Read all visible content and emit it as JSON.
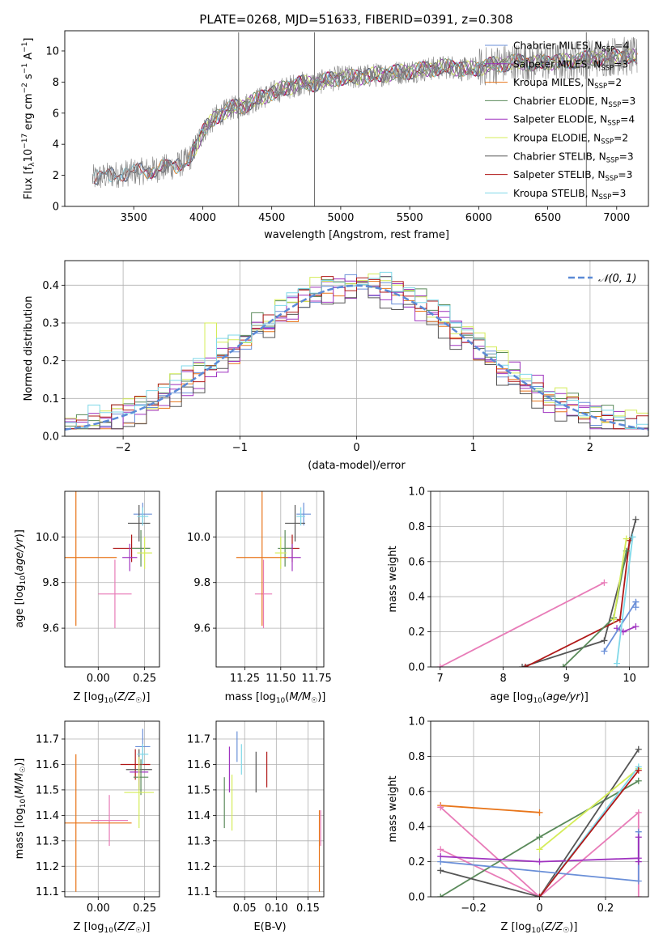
{
  "figure": {
    "title": "PLATE=0268, MJD=51633, FIBERID=0391, z=0.308"
  },
  "colors": {
    "chabrier_miles": "#6a8fd8",
    "salpeter_miles": "#9b2dbb",
    "kroupa_miles": "#e8751a",
    "chabrier_elodie": "#5a8a5a",
    "salpeter_elodie": "#a034c0",
    "kroupa_elodie": "#d4ec58",
    "chabrier_stelib": "#555555",
    "salpeter_stelib": "#b01818",
    "kroupa_stelib": "#7fd8e8",
    "pink": "#e87cb8",
    "normal": "#5b8ad6",
    "data": "#808080"
  },
  "chart_data": [
    {
      "panel": "spectrum",
      "type": "line",
      "xlabel": "wavelength [Angstrom, rest frame]",
      "ylabel": "Flux [f_λ 10^-17 erg cm^-2 s^-1 A^-1]",
      "xlim": [
        3000,
        7230
      ],
      "ylim": [
        0,
        11.3
      ],
      "xticks": [
        3500,
        4000,
        4500,
        5000,
        5500,
        6000,
        6500,
        7000
      ],
      "yticks": [
        0,
        2,
        4,
        6,
        8,
        10
      ],
      "legend_position": "top-right",
      "legend": [
        {
          "label": "Chabrier MILES, N",
          "sub": "SSP",
          "tail": "=4",
          "color": "chabrier_miles"
        },
        {
          "label": "Salpeter MILES, N",
          "sub": "SSP",
          "tail": "=3",
          "color": "salpeter_miles"
        },
        {
          "label": "Kroupa MILES, N",
          "sub": "SSP",
          "tail": "=2",
          "color": "kroupa_miles"
        },
        {
          "label": "Chabrier ELODIE, N",
          "sub": "SSP",
          "tail": "=3",
          "color": "chabrier_elodie"
        },
        {
          "label": "Salpeter ELODIE, N",
          "sub": "SSP",
          "tail": "=4",
          "color": "salpeter_elodie"
        },
        {
          "label": "Kroupa ELODIE, N",
          "sub": "SSP",
          "tail": "=2",
          "color": "kroupa_elodie"
        },
        {
          "label": "Chabrier STELIB, N",
          "sub": "SSP",
          "tail": "=3",
          "color": "chabrier_stelib"
        },
        {
          "label": "Salpeter STELIB, N",
          "sub": "SSP",
          "tail": "=3",
          "color": "salpeter_stelib"
        },
        {
          "label": "Kroupa STELIB, N",
          "sub": "SSP",
          "tail": "=3",
          "color": "kroupa_stelib"
        }
      ],
      "continuum": {
        "x": [
          3200,
          3400,
          3600,
          3800,
          3900,
          4000,
          4100,
          4200,
          4300,
          4400,
          4500,
          4600,
          4700,
          4800,
          4900,
          5000,
          5100,
          5200,
          5300,
          5400,
          5500,
          5600,
          5700,
          5800,
          5900,
          6000,
          6100,
          6200,
          6300,
          6400,
          6500,
          6600,
          6700,
          6800,
          6900,
          7000,
          7100
        ],
        "y": [
          1.8,
          2.1,
          2.3,
          2.6,
          3.0,
          4.8,
          5.8,
          6.3,
          6.5,
          6.9,
          7.3,
          7.6,
          7.9,
          7.9,
          8.1,
          8.3,
          8.3,
          8.4,
          8.5,
          8.6,
          8.7,
          8.8,
          8.9,
          9.0,
          8.8,
          8.9,
          9.1,
          9.2,
          9.3,
          9.2,
          9.3,
          9.3,
          9.4,
          9.5,
          9.6,
          9.7,
          9.6
        ]
      },
      "spikes": [
        4260,
        4810,
        6780
      ]
    },
    {
      "panel": "residuals",
      "type": "area",
      "xlabel": "(data-model)/error",
      "ylabel": "Normed distribution",
      "xlim": [
        -2.5,
        2.5
      ],
      "ylim": [
        0,
        0.465
      ],
      "xticks": [
        -2,
        -1,
        0,
        1,
        2
      ],
      "yticks": [
        0.0,
        0.1,
        0.2,
        0.3,
        0.4
      ],
      "legend_position": "top-right",
      "legend": [
        {
          "label": "𝒩(0, 1)",
          "color": "normal"
        }
      ],
      "bin_width": 0.1,
      "series_offsets": [
        0.0,
        0.012,
        -0.014,
        0.02,
        -0.01,
        0.016,
        -0.018,
        0.008,
        0.024
      ]
    },
    {
      "panel": "age_vs_Z",
      "type": "scatter",
      "xlabel": "Z [log₁₀(Z/Z☉)]",
      "ylabel": "age  [log₁₀(age/yr)]",
      "xlim": [
        -0.18,
        0.33
      ],
      "ylim": [
        9.43,
        10.2
      ],
      "xticks": [
        0.0,
        0.25
      ],
      "yticks": [
        9.6,
        9.8,
        10.0
      ],
      "points": [
        {
          "x": 0.24,
          "y": 10.1,
          "xerr": 0.05,
          "yerr": 0.05,
          "color": "chabrier_miles"
        },
        {
          "x": 0.22,
          "y": 10.06,
          "xerr": 0.06,
          "yerr": 0.08,
          "color": "chabrier_stelib"
        },
        {
          "x": 0.24,
          "y": 10.09,
          "xerr": 0.03,
          "yerr": 0.04,
          "color": "kroupa_stelib"
        },
        {
          "x": 0.18,
          "y": 9.95,
          "xerr": 0.1,
          "yerr": 0.06,
          "color": "salpeter_stelib"
        },
        {
          "x": 0.23,
          "y": 9.95,
          "xerr": 0.05,
          "yerr": 0.08,
          "color": "chabrier_elodie"
        },
        {
          "x": 0.25,
          "y": 9.93,
          "xerr": 0.04,
          "yerr": 0.07,
          "color": "kroupa_elodie"
        },
        {
          "x": 0.17,
          "y": 9.91,
          "xerr": 0.04,
          "yerr": 0.06,
          "color": "salpeter_elodie"
        },
        {
          "x": 0.09,
          "y": 9.75,
          "xerr": 0.09,
          "yerr": 0.15,
          "color": "pink"
        },
        {
          "x": -0.12,
          "y": 9.91,
          "xerr": 0.22,
          "yerr": 0.3,
          "color": "kroupa_miles"
        }
      ]
    },
    {
      "panel": "age_vs_mass",
      "type": "scatter",
      "xlabel": "mass [log₁₀(M/M☉)]",
      "ylabel": "",
      "xlim": [
        11.05,
        11.8
      ],
      "ylim": [
        9.43,
        10.2
      ],
      "xticks": [
        11.25,
        11.5,
        11.75
      ],
      "yticks": [
        9.6,
        9.8,
        10.0
      ],
      "points": [
        {
          "x": 11.66,
          "y": 10.1,
          "xerr": 0.05,
          "yerr": 0.05,
          "color": "chabrier_miles"
        },
        {
          "x": 11.6,
          "y": 10.06,
          "xerr": 0.07,
          "yerr": 0.08,
          "color": "chabrier_stelib"
        },
        {
          "x": 11.64,
          "y": 10.09,
          "xerr": 0.03,
          "yerr": 0.04,
          "color": "kroupa_stelib"
        },
        {
          "x": 11.58,
          "y": 9.95,
          "xerr": 0.05,
          "yerr": 0.06,
          "color": "salpeter_stelib"
        },
        {
          "x": 11.53,
          "y": 9.95,
          "xerr": 0.05,
          "yerr": 0.08,
          "color": "chabrier_elodie"
        },
        {
          "x": 11.5,
          "y": 9.93,
          "xerr": 0.04,
          "yerr": 0.07,
          "color": "kroupa_elodie"
        },
        {
          "x": 11.58,
          "y": 9.91,
          "xerr": 0.06,
          "yerr": 0.06,
          "color": "salpeter_elodie"
        },
        {
          "x": 11.38,
          "y": 9.75,
          "xerr": 0.06,
          "yerr": 0.15,
          "color": "pink"
        },
        {
          "x": 11.37,
          "y": 9.91,
          "xerr": 0.18,
          "yerr": 0.3,
          "color": "kroupa_miles"
        }
      ]
    },
    {
      "panel": "massweight_vs_age",
      "type": "line",
      "xlabel": "age  [log₁₀(age/yr)]",
      "ylabel": "mass weight",
      "xlim": [
        6.85,
        10.3
      ],
      "ylim": [
        0,
        1.0
      ],
      "xticks": [
        7,
        8,
        9,
        10
      ],
      "yticks": [
        0.0,
        0.2,
        0.4,
        0.6,
        0.8,
        1.0
      ],
      "series": [
        {
          "color": "pink",
          "x": [
            7.0,
            9.6
          ],
          "y": [
            0.0,
            0.48
          ]
        },
        {
          "color": "chabrier_stelib",
          "x": [
            8.3,
            9.6,
            10.1
          ],
          "y": [
            0.0,
            0.15,
            0.84
          ]
        },
        {
          "color": "salpeter_stelib",
          "x": [
            8.35,
            9.85,
            10.0
          ],
          "y": [
            0.0,
            0.27,
            0.72
          ]
        },
        {
          "color": "chabrier_elodie",
          "x": [
            8.95,
            9.75,
            9.95
          ],
          "y": [
            0.0,
            0.28,
            0.66
          ]
        },
        {
          "color": "kroupa_elodie",
          "x": [
            9.75,
            9.95
          ],
          "y": [
            0.27,
            0.73
          ]
        },
        {
          "color": "salpeter_elodie",
          "x": [
            9.8,
            9.9,
            10.1
          ],
          "y": [
            0.22,
            0.2,
            0.23
          ]
        },
        {
          "color": "chabrier_miles",
          "x": [
            9.6,
            10.1,
            10.1
          ],
          "y": [
            0.09,
            0.37,
            0.34
          ]
        },
        {
          "color": "kroupa_stelib",
          "x": [
            9.8,
            10.05
          ],
          "y": [
            0.02,
            0.74
          ]
        }
      ]
    },
    {
      "panel": "mass_vs_Z",
      "type": "scatter",
      "xlabel": "Z [log₁₀(Z/Z☉)]",
      "ylabel": "mass [log₁₀(M/M☉)]",
      "xlim": [
        -0.18,
        0.33
      ],
      "ylim": [
        11.08,
        11.77
      ],
      "xticks": [
        0.0,
        0.25
      ],
      "yticks": [
        11.1,
        11.2,
        11.3,
        11.4,
        11.5,
        11.6,
        11.7
      ],
      "points": [
        {
          "x": 0.24,
          "y": 11.67,
          "xerr": 0.04,
          "yerr": 0.07,
          "color": "chabrier_miles"
        },
        {
          "x": 0.2,
          "y": 11.6,
          "xerr": 0.08,
          "yerr": 0.06,
          "color": "salpeter_stelib"
        },
        {
          "x": 0.22,
          "y": 11.58,
          "xerr": 0.07,
          "yerr": 0.08,
          "color": "chabrier_stelib"
        },
        {
          "x": 0.24,
          "y": 11.64,
          "xerr": 0.03,
          "yerr": 0.04,
          "color": "kroupa_stelib"
        },
        {
          "x": 0.22,
          "y": 11.57,
          "xerr": 0.05,
          "yerr": 0.06,
          "color": "salpeter_elodie"
        },
        {
          "x": 0.23,
          "y": 11.55,
          "xerr": 0.04,
          "yerr": 0.07,
          "color": "chabrier_elodie"
        },
        {
          "x": 0.22,
          "y": 11.49,
          "xerr": 0.08,
          "yerr": 0.14,
          "color": "kroupa_elodie"
        },
        {
          "x": 0.06,
          "y": 11.38,
          "xerr": 0.1,
          "yerr": 0.1,
          "color": "pink"
        },
        {
          "x": -0.12,
          "y": 11.37,
          "xerr": 0.3,
          "yerr": 0.27,
          "color": "kroupa_miles"
        }
      ]
    },
    {
      "panel": "mass_vs_EBV",
      "type": "scatter",
      "xlabel": "E(B-V)",
      "ylabel": "",
      "xlim": [
        0.005,
        0.175
      ],
      "ylim": [
        11.08,
        11.77
      ],
      "xticks": [
        0.05,
        0.1,
        0.15
      ],
      "yticks": [
        11.1,
        11.2,
        11.3,
        11.4,
        11.5,
        11.6,
        11.7
      ],
      "points": [
        {
          "x": 0.038,
          "y": 11.67,
          "xerr": 0,
          "yerr": 0.06,
          "color": "chabrier_miles"
        },
        {
          "x": 0.045,
          "y": 11.62,
          "xerr": 0,
          "yerr": 0.06,
          "color": "kroupa_stelib"
        },
        {
          "x": 0.026,
          "y": 11.58,
          "xerr": 0,
          "yerr": 0.09,
          "color": "salpeter_elodie"
        },
        {
          "x": 0.068,
          "y": 11.57,
          "xerr": 0,
          "yerr": 0.08,
          "color": "chabrier_stelib"
        },
        {
          "x": 0.085,
          "y": 11.58,
          "xerr": 0,
          "yerr": 0.07,
          "color": "salpeter_stelib"
        },
        {
          "x": 0.018,
          "y": 11.45,
          "xerr": 0,
          "yerr": 0.1,
          "color": "chabrier_elodie"
        },
        {
          "x": 0.03,
          "y": 11.45,
          "xerr": 0,
          "yerr": 0.11,
          "color": "kroupa_elodie"
        },
        {
          "x": 0.17,
          "y": 11.35,
          "xerr": 0,
          "yerr": 0.07,
          "color": "pink"
        },
        {
          "x": 0.168,
          "y": 11.26,
          "xerr": 0,
          "yerr": 0.16,
          "color": "kroupa_miles"
        }
      ]
    },
    {
      "panel": "massweight_vs_Z",
      "type": "line",
      "xlabel": "Z [log₁₀(Z/Z☉)]",
      "ylabel": "mass weight",
      "xlim": [
        -0.33,
        0.33
      ],
      "ylim": [
        0,
        1.0
      ],
      "xticks": [
        -0.2,
        0.0,
        0.2
      ],
      "yticks": [
        0.0,
        0.2,
        0.4,
        0.6,
        0.8,
        1.0
      ],
      "series": [
        {
          "color": "kroupa_miles",
          "x": [
            -0.3,
            0.0
          ],
          "y": [
            0.52,
            0.48
          ]
        },
        {
          "color": "pink",
          "x": [
            -0.3,
            0.0,
            0.3,
            0.3
          ],
          "y": [
            0.51,
            0.0,
            0.48,
            0.0
          ]
        },
        {
          "color": "pink",
          "x": [
            -0.3,
            0.0
          ],
          "y": [
            0.27,
            0.0
          ]
        },
        {
          "color": "chabrier_elodie",
          "x": [
            -0.3,
            0.0,
            0.3
          ],
          "y": [
            0.0,
            0.34,
            0.66
          ]
        },
        {
          "color": "chabrier_stelib",
          "x": [
            -0.3,
            0.0,
            0.3
          ],
          "y": [
            0.15,
            0.0,
            0.84
          ]
        },
        {
          "color": "salpeter_elodie",
          "x": [
            -0.3,
            0.0,
            0.3
          ],
          "y": [
            0.23,
            0.2,
            0.22
          ]
        },
        {
          "color": "chabrier_miles",
          "x": [
            -0.3,
            0.3,
            0.3
          ],
          "y": [
            0.2,
            0.09,
            0.37
          ]
        },
        {
          "color": "kroupa_elodie",
          "x": [
            0.0,
            0.3
          ],
          "y": [
            0.27,
            0.73
          ]
        },
        {
          "color": "kroupa_stelib",
          "x": [
            0.0,
            0.3
          ],
          "y": [
            0.0,
            0.74
          ]
        },
        {
          "color": "salpeter_stelib",
          "x": [
            0.0,
            0.3
          ],
          "y": [
            0.0,
            0.72
          ]
        },
        {
          "color": "salpeter_miles",
          "x": [
            0.3,
            0.3
          ],
          "y": [
            0.2,
            0.34
          ]
        }
      ]
    }
  ]
}
